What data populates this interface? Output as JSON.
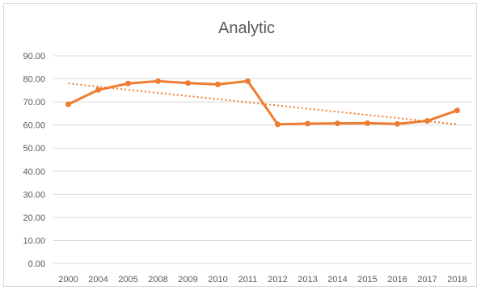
{
  "chart_data": {
    "type": "line",
    "title": "Analytic",
    "xlabel": "",
    "ylabel": "",
    "categories": [
      "2000",
      "2004",
      "2005",
      "2008",
      "2009",
      "2010",
      "2011",
      "2012",
      "2013",
      "2014",
      "2015",
      "2016",
      "2017",
      "2018"
    ],
    "series": [
      {
        "values": [
          69.0,
          75.2,
          78.0,
          79.0,
          78.2,
          77.6,
          79.0,
          60.3,
          60.6,
          60.7,
          60.8,
          60.5,
          61.8,
          66.3
        ],
        "color": "#ed7d31"
      }
    ],
    "trendline": {
      "type": "linear",
      "style": "dotted",
      "color": "#ed7d31",
      "start": 78.0,
      "end": 60.3
    },
    "ylim": [
      0,
      90
    ],
    "yticks": [
      "0.00",
      "10.00",
      "20.00",
      "30.00",
      "40.00",
      "50.00",
      "60.00",
      "70.00",
      "80.00",
      "90.00"
    ],
    "grid": true,
    "legend": "none"
  }
}
